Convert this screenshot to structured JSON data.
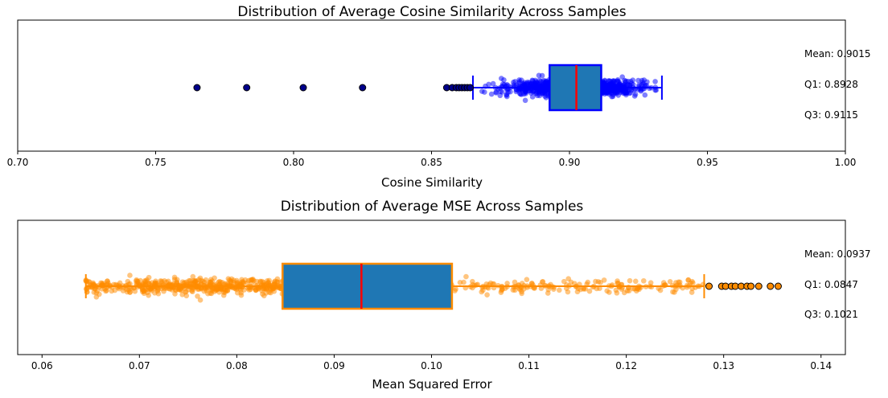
{
  "chart_data": [
    {
      "type": "boxplot",
      "orientation": "horizontal",
      "title": "Distribution of Average Cosine Similarity Across Samples",
      "xlabel": "Cosine Similarity",
      "ylabel": "",
      "xlim": [
        0.7,
        1.0
      ],
      "xticks": [
        "0.70",
        "0.75",
        "0.80",
        "0.85",
        "0.90",
        "0.95",
        "1.00"
      ],
      "xtick_values": [
        0.7,
        0.75,
        0.8,
        0.85,
        0.9,
        0.95,
        1.0
      ],
      "box": {
        "q1": 0.8928,
        "median": 0.9025,
        "q3": 0.9115,
        "whisker_low": 0.865,
        "whisker_high": 0.9335
      },
      "box_fill": "#1f77b4",
      "box_edge": "#0000ff",
      "median_color": "#ff0000",
      "strip_color": "#0000ff",
      "strip_range": [
        0.863,
        0.9335
      ],
      "outliers": [
        0.765,
        0.783,
        0.8035,
        0.825,
        0.8555,
        0.8575,
        0.859,
        0.86,
        0.861,
        0.862,
        0.863,
        0.864
      ],
      "outlier_color": "#00008b",
      "stats": [
        "Mean: 0.9015",
        "Q1: 0.8928",
        "Q3: 0.9115"
      ]
    },
    {
      "type": "boxplot",
      "orientation": "horizontal",
      "title": "Distribution of Average MSE Across Samples",
      "xlabel": "Mean Squared Error",
      "ylabel": "",
      "xlim": [
        0.0575,
        0.1425
      ],
      "xticks": [
        "0.06",
        "0.07",
        "0.08",
        "0.09",
        "0.10",
        "0.11",
        "0.12",
        "0.13",
        "0.14"
      ],
      "xtick_values": [
        0.06,
        0.07,
        0.08,
        0.09,
        0.1,
        0.11,
        0.12,
        0.13,
        0.14
      ],
      "box": {
        "q1": 0.0847,
        "median": 0.0928,
        "q3": 0.1021,
        "whisker_low": 0.0645,
        "whisker_high": 0.128
      },
      "box_fill": "#1f77b4",
      "box_edge": "#ff8c00",
      "median_color": "#ff0000",
      "strip_color": "#ff8c00",
      "strip_range": [
        0.0645,
        0.128
      ],
      "outliers": [
        0.1285,
        0.1298,
        0.1302,
        0.1308,
        0.1312,
        0.1318,
        0.1324,
        0.1328,
        0.1336,
        0.1348,
        0.1356
      ],
      "outlier_color": "#ff8c00",
      "stats": [
        "Mean: 0.0937",
        "Q1: 0.0847",
        "Q3: 0.1021"
      ]
    }
  ]
}
